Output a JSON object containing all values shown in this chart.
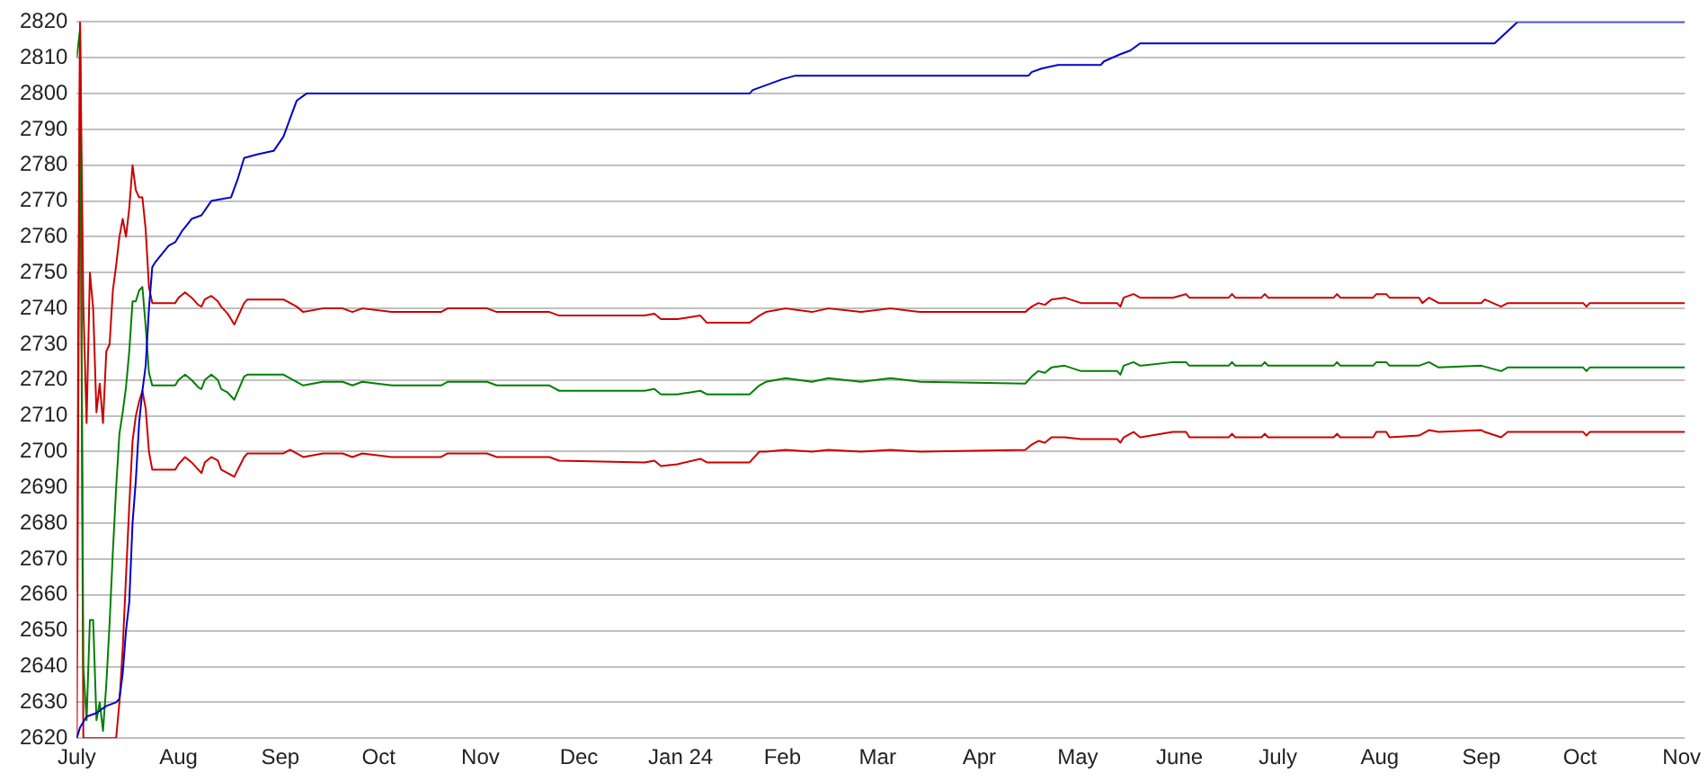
{
  "chart_data": {
    "type": "line",
    "marker": "none",
    "grid": "y",
    "xlim": [
      "2023-07-01",
      "2024-11-02"
    ],
    "xticks": [
      {
        "value": "2023-07-01",
        "label": "July"
      },
      {
        "value": "2023-08-01",
        "label": "Aug"
      },
      {
        "value": "2023-09-01",
        "label": "Sep"
      },
      {
        "value": "2023-10-01",
        "label": "Oct"
      },
      {
        "value": "2023-11-01",
        "label": "Nov"
      },
      {
        "value": "2023-12-01",
        "label": "Dec"
      },
      {
        "value": "2024-01-01",
        "label": "Jan 24"
      },
      {
        "value": "2024-02-01",
        "label": "Feb"
      },
      {
        "value": "2024-03-01",
        "label": "Mar"
      },
      {
        "value": "2024-04-01",
        "label": "Apr"
      },
      {
        "value": "2024-05-01",
        "label": "May"
      },
      {
        "value": "2024-06-01",
        "label": "June"
      },
      {
        "value": "2024-07-01",
        "label": "July"
      },
      {
        "value": "2024-08-01",
        "label": "Aug"
      },
      {
        "value": "2024-09-01",
        "label": "Sep"
      },
      {
        "value": "2024-10-01",
        "label": "Oct"
      },
      {
        "value": "2024-11-01",
        "label": "Nov"
      }
    ],
    "ylim": [
      2620,
      2820
    ],
    "yticks": [
      2620,
      2630,
      2640,
      2650,
      2660,
      2670,
      2680,
      2690,
      2700,
      2710,
      2720,
      2730,
      2740,
      2750,
      2760,
      2770,
      2780,
      2790,
      2800,
      2810,
      2820
    ],
    "series": [
      {
        "color": "#0000cc",
        "x": [
          "2023-07-01",
          "2023-07-02",
          "2023-07-04",
          "2023-07-07",
          "2023-07-10",
          "2023-07-13",
          "2023-07-14",
          "2023-07-15",
          "2023-07-16",
          "2023-07-17",
          "2023-07-18",
          "2023-07-19",
          "2023-07-20",
          "2023-07-21",
          "2023-07-22",
          "2023-07-23",
          "2023-07-24",
          "2023-07-25",
          "2023-07-29",
          "2023-07-31",
          "2023-08-02",
          "2023-08-05",
          "2023-08-08",
          "2023-08-11",
          "2023-08-17",
          "2023-08-19",
          "2023-08-21",
          "2023-08-25",
          "2023-08-30",
          "2023-09-02",
          "2023-09-04",
          "2023-09-06",
          "2023-09-09",
          "2024-01-22",
          "2024-01-23",
          "2024-01-26",
          "2024-01-29",
          "2024-02-01",
          "2024-02-05",
          "2024-04-16",
          "2024-04-17",
          "2024-04-20",
          "2024-04-25",
          "2024-05-08",
          "2024-05-09",
          "2024-05-14",
          "2024-05-17",
          "2024-05-20",
          "2024-09-05",
          "2024-09-12",
          "2024-11-02"
        ],
        "values": [
          2620,
          2623,
          2626,
          2627,
          2629,
          2630,
          2631,
          2638,
          2650,
          2658,
          2680,
          2692,
          2708,
          2717,
          2724,
          2740,
          2751.5,
          2753,
          2757.5,
          2758.5,
          2761.5,
          2765,
          2766,
          2770,
          2771,
          2776,
          2782,
          2783,
          2784,
          2788,
          2793,
          2798,
          2800,
          2800,
          2801,
          2802,
          2803,
          2804,
          2805,
          2805,
          2806,
          2807,
          2808,
          2808,
          2809,
          2811,
          2812,
          2814,
          2814,
          2820,
          2820
        ]
      },
      {
        "color": "#cc0000",
        "x": [
          "2023-07-01",
          "2023-07-02",
          "2023-07-03",
          "2023-07-04",
          "2023-07-05",
          "2023-07-06",
          "2023-07-07",
          "2023-07-08",
          "2023-07-09",
          "2023-07-10",
          "2023-07-11",
          "2023-07-12",
          "2023-07-13",
          "2023-07-14",
          "2023-07-15",
          "2023-07-16",
          "2023-07-17",
          "2023-07-18",
          "2023-07-19",
          "2023-07-20",
          "2023-07-21",
          "2023-07-22",
          "2023-07-23",
          "2023-07-24",
          "2023-07-31",
          "2023-08-01",
          "2023-08-03",
          "2023-08-05",
          "2023-08-07",
          "2023-08-08",
          "2023-08-09",
          "2023-08-11",
          "2023-08-13",
          "2023-08-14",
          "2023-08-16",
          "2023-08-18",
          "2023-08-21",
          "2023-08-22",
          "2023-08-27",
          "2023-09-02",
          "2023-09-04",
          "2023-09-06",
          "2023-09-08",
          "2023-09-14",
          "2023-09-20",
          "2023-09-23",
          "2023-09-26",
          "2023-10-05",
          "2023-10-20",
          "2023-10-22",
          "2023-11-03",
          "2023-11-06",
          "2023-11-22",
          "2023-11-25",
          "2023-12-21",
          "2023-12-24",
          "2023-12-26",
          "2023-12-31",
          "2024-01-07",
          "2024-01-09",
          "2024-01-22",
          "2024-01-25",
          "2024-01-27",
          "2024-02-02",
          "2024-02-10",
          "2024-02-15",
          "2024-02-25",
          "2024-03-05",
          "2024-03-14",
          "2024-04-15",
          "2024-04-17",
          "2024-04-19",
          "2024-04-21",
          "2024-04-23",
          "2024-04-27",
          "2024-05-02",
          "2024-05-13",
          "2024-05-14",
          "2024-05-15",
          "2024-05-18",
          "2024-05-20",
          "2024-05-30",
          "2024-06-03",
          "2024-06-04",
          "2024-06-16",
          "2024-06-17",
          "2024-06-18",
          "2024-06-26",
          "2024-06-27",
          "2024-06-28",
          "2024-07-18",
          "2024-07-19",
          "2024-07-20",
          "2024-07-30",
          "2024-07-31",
          "2024-08-03",
          "2024-08-04",
          "2024-08-13",
          "2024-08-14",
          "2024-08-16",
          "2024-08-19",
          "2024-09-01",
          "2024-09-02",
          "2024-09-07",
          "2024-09-09",
          "2024-10-02",
          "2024-10-03",
          "2024-10-04",
          "2024-11-02"
        ],
        "values": [
          2661,
          2820,
          2741,
          2708,
          2750,
          2740,
          2711,
          2719,
          2708,
          2728,
          2730,
          2745,
          2752,
          2760,
          2765,
          2760,
          2768,
          2780,
          2773,
          2771,
          2771,
          2762,
          2746,
          2741.5,
          2741.5,
          2743,
          2744.5,
          2743,
          2741,
          2740.5,
          2742.5,
          2743.5,
          2742,
          2740.5,
          2738.5,
          2735.5,
          2741.5,
          2742.5,
          2742.5,
          2742.5,
          2741.5,
          2740.5,
          2739,
          2740,
          2740,
          2739,
          2740,
          2739,
          2739,
          2740,
          2740,
          2739,
          2739,
          2738,
          2738,
          2738.5,
          2737,
          2737,
          2738,
          2736,
          2736,
          2738,
          2739,
          2740,
          2739,
          2740,
          2739,
          2740,
          2739,
          2739,
          2740.5,
          2741.5,
          2741,
          2742.5,
          2743,
          2741.5,
          2741.5,
          2740.5,
          2743,
          2744,
          2743,
          2743,
          2744,
          2743,
          2743,
          2744,
          2743,
          2743,
          2744,
          2743,
          2743,
          2744,
          2743,
          2743,
          2744,
          2744,
          2743,
          2743,
          2741.5,
          2743,
          2741.5,
          2741.5,
          2742.5,
          2740.5,
          2741.5,
          2741.5,
          2740.5,
          2741.5,
          2741.5
        ]
      },
      {
        "color": "#008000",
        "x": [
          "2023-07-01",
          "2023-07-02",
          "2023-07-03",
          "2023-07-04",
          "2023-07-05",
          "2023-07-06",
          "2023-07-07",
          "2023-07-08",
          "2023-07-09",
          "2023-07-10",
          "2023-07-11",
          "2023-07-12",
          "2023-07-13",
          "2023-07-14",
          "2023-07-15",
          "2023-07-16",
          "2023-07-17",
          "2023-07-18",
          "2023-07-19",
          "2023-07-20",
          "2023-07-21",
          "2023-07-22",
          "2023-07-23",
          "2023-07-24",
          "2023-07-31",
          "2023-08-01",
          "2023-08-03",
          "2023-08-05",
          "2023-08-07",
          "2023-08-08",
          "2023-08-09",
          "2023-08-11",
          "2023-08-13",
          "2023-08-14",
          "2023-08-16",
          "2023-08-18",
          "2023-08-21",
          "2023-08-22",
          "2023-08-27",
          "2023-09-02",
          "2023-09-04",
          "2023-09-06",
          "2023-09-08",
          "2023-09-14",
          "2023-09-20",
          "2023-09-23",
          "2023-09-26",
          "2023-10-05",
          "2023-10-20",
          "2023-10-22",
          "2023-11-03",
          "2023-11-06",
          "2023-11-22",
          "2023-11-25",
          "2023-12-21",
          "2023-12-24",
          "2023-12-26",
          "2023-12-31",
          "2024-01-07",
          "2024-01-09",
          "2024-01-22",
          "2024-01-25",
          "2024-01-27",
          "2024-02-02",
          "2024-02-10",
          "2024-02-15",
          "2024-02-25",
          "2024-03-05",
          "2024-03-14",
          "2024-04-15",
          "2024-04-17",
          "2024-04-19",
          "2024-04-21",
          "2024-04-23",
          "2024-04-27",
          "2024-05-02",
          "2024-05-13",
          "2024-05-14",
          "2024-05-15",
          "2024-05-18",
          "2024-05-20",
          "2024-05-30",
          "2024-06-03",
          "2024-06-04",
          "2024-06-16",
          "2024-06-17",
          "2024-06-18",
          "2024-06-26",
          "2024-06-27",
          "2024-06-28",
          "2024-07-18",
          "2024-07-19",
          "2024-07-20",
          "2024-07-30",
          "2024-07-31",
          "2024-08-03",
          "2024-08-04",
          "2024-08-13",
          "2024-08-16",
          "2024-08-19",
          "2024-09-01",
          "2024-09-07",
          "2024-09-09",
          "2024-10-02",
          "2024-10-03",
          "2024-10-04",
          "2024-11-02"
        ],
        "values": [
          2810,
          2818,
          2640,
          2625,
          2653,
          2653,
          2625,
          2630,
          2622,
          2635,
          2652,
          2672,
          2690,
          2705,
          2711,
          2718,
          2728,
          2742,
          2742,
          2745,
          2746,
          2735,
          2722,
          2718.5,
          2718.5,
          2720,
          2721.5,
          2720,
          2718,
          2717.5,
          2720,
          2721.5,
          2720,
          2717.5,
          2716.5,
          2714.5,
          2721,
          2721.5,
          2721.5,
          2721.5,
          2720.5,
          2719.5,
          2718.5,
          2719.5,
          2719.5,
          2718.5,
          2719.5,
          2718.5,
          2718.5,
          2719.5,
          2719.5,
          2718.5,
          2718.5,
          2717,
          2717,
          2717.5,
          2716,
          2716,
          2717,
          2716,
          2716,
          2718.5,
          2719.5,
          2720.5,
          2719.5,
          2720.5,
          2719.5,
          2720.5,
          2719.5,
          2719,
          2721,
          2722.5,
          2722,
          2723.5,
          2724,
          2722.5,
          2722.5,
          2721.5,
          2724,
          2725,
          2724,
          2725,
          2725,
          2724,
          2724,
          2725,
          2724,
          2724,
          2725,
          2724,
          2724,
          2725,
          2724,
          2724,
          2725,
          2725,
          2724,
          2724,
          2725,
          2723.5,
          2724,
          2722.5,
          2723.5,
          2723.5,
          2722.5,
          2723.5,
          2723.5
        ]
      },
      {
        "color": "#cc0000",
        "x": [
          "2023-07-01",
          "2023-07-02",
          "2023-07-03",
          "2023-07-13",
          "2023-07-14",
          "2023-07-15",
          "2023-07-16",
          "2023-07-17",
          "2023-07-18",
          "2023-07-19",
          "2023-07-20",
          "2023-07-21",
          "2023-07-22",
          "2023-07-23",
          "2023-07-24",
          "2023-07-31",
          "2023-08-01",
          "2023-08-03",
          "2023-08-05",
          "2023-08-07",
          "2023-08-08",
          "2023-08-09",
          "2023-08-11",
          "2023-08-13",
          "2023-08-14",
          "2023-08-16",
          "2023-08-18",
          "2023-08-21",
          "2023-08-22",
          "2023-08-27",
          "2023-09-02",
          "2023-09-04",
          "2023-09-06",
          "2023-09-08",
          "2023-09-14",
          "2023-09-20",
          "2023-09-23",
          "2023-09-26",
          "2023-10-05",
          "2023-10-20",
          "2023-10-22",
          "2023-11-03",
          "2023-11-06",
          "2023-11-22",
          "2023-11-25",
          "2023-12-21",
          "2023-12-24",
          "2023-12-26",
          "2023-12-31",
          "2024-01-07",
          "2024-01-09",
          "2024-01-22",
          "2024-01-25",
          "2024-01-27",
          "2024-02-02",
          "2024-02-10",
          "2024-02-15",
          "2024-02-25",
          "2024-03-05",
          "2024-03-14",
          "2024-04-15",
          "2024-04-17",
          "2024-04-19",
          "2024-04-21",
          "2024-04-23",
          "2024-04-27",
          "2024-05-02",
          "2024-05-13",
          "2024-05-14",
          "2024-05-15",
          "2024-05-18",
          "2024-05-20",
          "2024-05-30",
          "2024-06-03",
          "2024-06-04",
          "2024-06-16",
          "2024-06-17",
          "2024-06-18",
          "2024-06-26",
          "2024-06-27",
          "2024-06-28",
          "2024-07-18",
          "2024-07-19",
          "2024-07-20",
          "2024-07-30",
          "2024-07-31",
          "2024-08-03",
          "2024-08-04",
          "2024-08-13",
          "2024-08-16",
          "2024-08-19",
          "2024-09-01",
          "2024-09-02",
          "2024-09-07",
          "2024-09-09",
          "2024-10-02",
          "2024-10-03",
          "2024-10-04",
          "2024-11-02"
        ],
        "values": [
          2620,
          2820,
          2620,
          2620,
          2630,
          2645,
          2665,
          2685,
          2703,
          2710,
          2714,
          2717,
          2712,
          2700,
          2695,
          2695,
          2696.5,
          2698.5,
          2697,
          2695,
          2694,
          2697,
          2698.5,
          2697.5,
          2695,
          2694,
          2693,
          2698.5,
          2699.5,
          2699.5,
          2699.5,
          2700.5,
          2699.5,
          2698.5,
          2699.5,
          2699.5,
          2698.5,
          2699.5,
          2698.5,
          2698.5,
          2699.5,
          2699.5,
          2698.5,
          2698.5,
          2697.5,
          2697,
          2697.5,
          2696,
          2696.5,
          2698,
          2697,
          2697,
          2700,
          2700,
          2700.5,
          2700,
          2700.5,
          2700,
          2700.5,
          2700,
          2700.5,
          2702,
          2703,
          2702.5,
          2704,
          2704,
          2703.5,
          2703.5,
          2702.5,
          2704,
          2705.5,
          2704,
          2705.5,
          2705.5,
          2704,
          2704,
          2705,
          2704,
          2704,
          2705,
          2704,
          2704,
          2705,
          2704,
          2704,
          2705.5,
          2705.5,
          2704,
          2704.5,
          2706,
          2705.5,
          2706,
          2705.5,
          2704,
          2705.5,
          2705.5,
          2704.5,
          2705.5,
          2705.5
        ]
      }
    ]
  }
}
